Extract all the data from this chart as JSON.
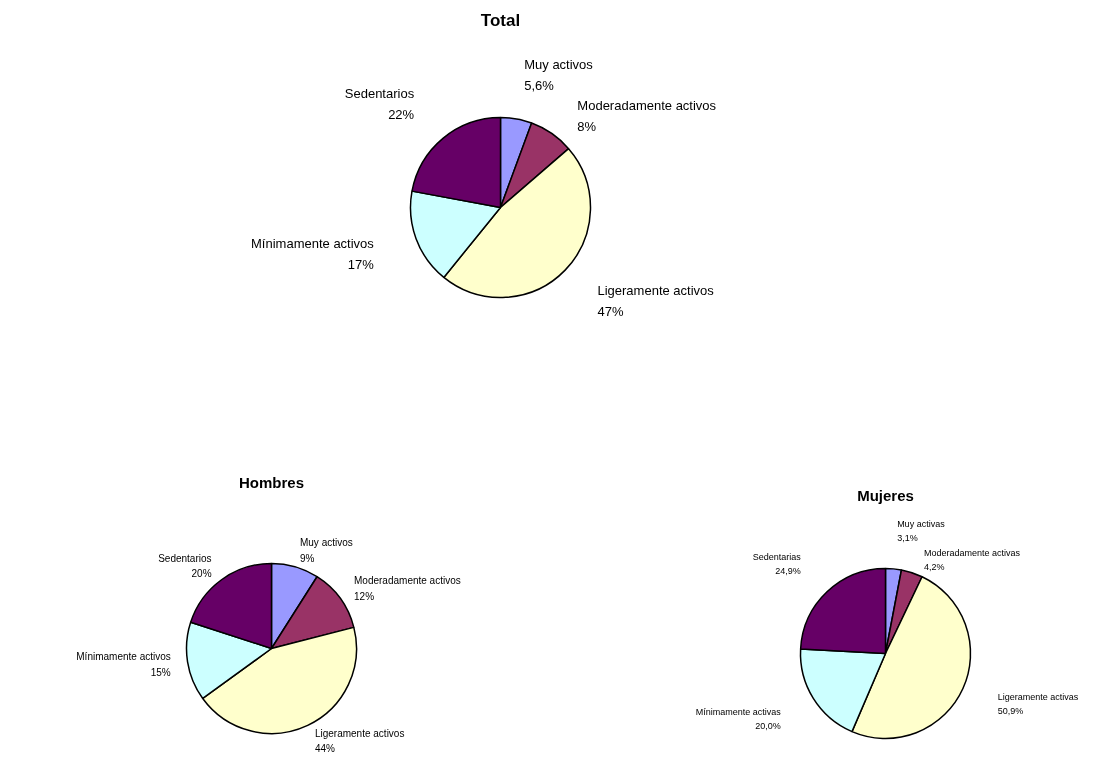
{
  "chart_data": [
    {
      "type": "pie",
      "title": "Total",
      "categories": [
        "Muy activos",
        "Moderadamente activos",
        "Ligeramente activos",
        "Mínimamente activos",
        "Sedentarios"
      ],
      "values": [
        5.6,
        8,
        47,
        17,
        22
      ],
      "value_labels": [
        "5,6%",
        "8%",
        "47%",
        "17%",
        "22%"
      ],
      "colors": [
        "#9999ff",
        "#993366",
        "#ffffcc",
        "#ccffff",
        "#660066"
      ]
    },
    {
      "type": "pie",
      "title": "Hombres",
      "categories": [
        "Muy activos",
        "Moderadamente activos",
        "Ligeramente activos",
        "Mínimamente activos",
        "Sedentarios"
      ],
      "values": [
        9,
        12,
        44,
        15,
        20
      ],
      "value_labels": [
        "9%",
        "12%",
        "44%",
        "15%",
        "20%"
      ],
      "colors": [
        "#9999ff",
        "#993366",
        "#ffffcc",
        "#ccffff",
        "#660066"
      ]
    },
    {
      "type": "pie",
      "title": "Mujeres",
      "categories": [
        "Muy activas",
        "Moderadamente activas",
        "Ligeramente activas",
        "Mínimamente activas",
        "Sedentarias"
      ],
      "values": [
        3.1,
        4.2,
        50.9,
        20.0,
        24.9
      ],
      "value_labels": [
        "3,1%",
        "4,2%",
        "50,9%",
        "20,0%",
        "24,9%"
      ],
      "colors": [
        "#9999ff",
        "#993366",
        "#ffffcc",
        "#ccffff",
        "#660066"
      ]
    }
  ]
}
